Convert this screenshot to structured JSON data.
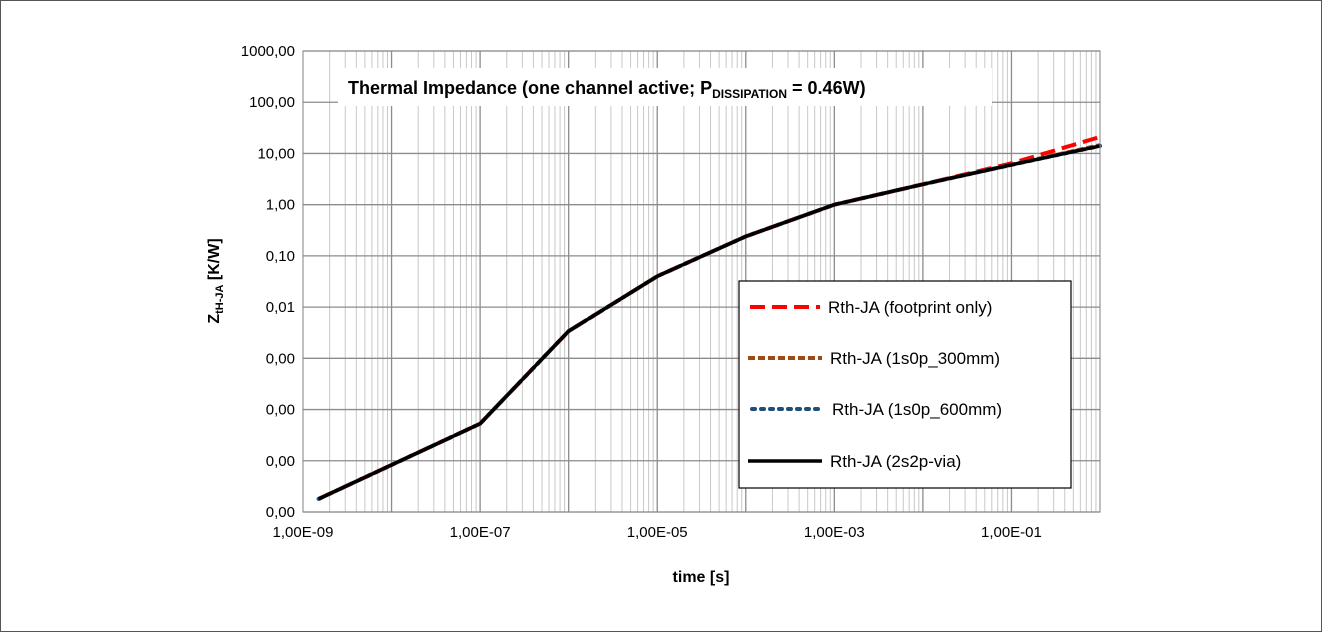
{
  "chart_data": {
    "type": "line",
    "title_main": "Thermal Impedance (one channel active; P",
    "title_sub": "DISSIPATION",
    "title_tail": " = 0.46W)",
    "xlabel": "time  [s]",
    "ylabel_main": "Z",
    "ylabel_sub": "tH-JA",
    "ylabel_tail": " [K/W]",
    "x_scale": "log",
    "y_scale": "log",
    "xlim": [
      1e-09,
      1
    ],
    "ylim": [
      1e-06,
      1000
    ],
    "x_ticks": [
      1e-09,
      1e-07,
      1e-05,
      0.001,
      0.1
    ],
    "x_tick_labels": [
      "1,00E-09",
      "1,00E-07",
      "1,00E-05",
      "1,00E-03",
      "1,00E-01"
    ],
    "y_ticks": [
      1e-06,
      1e-05,
      0.0001,
      0.001,
      0.01,
      0.1,
      1,
      10,
      100,
      1000
    ],
    "y_tick_labels": [
      "0,00",
      "0,00",
      "0,00",
      "0,00",
      "0,01",
      "0,10",
      "1,00",
      "10,00",
      "100,00",
      "1000,00"
    ],
    "grid": true,
    "legend_position": "lower-right",
    "x": [
      1.5e-09,
      1e-08,
      1e-07,
      1e-06,
      1e-05,
      0.0001,
      0.001,
      0.01,
      0.1,
      1
    ],
    "series": [
      {
        "name": "Rth-JA (footprint only)",
        "color": "#ff0000",
        "dash": "dashed",
        "values": [
          1.8e-06,
          8.3e-06,
          5.3e-05,
          0.0034,
          0.04,
          0.24,
          1.0,
          2.5,
          6.4,
          21
        ]
      },
      {
        "name": "Rth-JA (1s0p_300mm)",
        "color": "#9c4a16",
        "dash": "dashed",
        "values": [
          1.8e-06,
          8.3e-06,
          5.3e-05,
          0.0034,
          0.04,
          0.24,
          1.0,
          2.5,
          6.0,
          14.5
        ]
      },
      {
        "name": "Rth-JA (1s0p_600mm)",
        "color": "#1f4e79",
        "dash": "dotted",
        "values": [
          1.8e-06,
          8.3e-06,
          5.3e-05,
          0.0034,
          0.04,
          0.24,
          1.0,
          2.5,
          6.0,
          14.0
        ]
      },
      {
        "name": "Rth-JA (2s2p-via)",
        "color": "#000000",
        "dash": "solid",
        "values": [
          1.8e-06,
          8.3e-06,
          5.3e-05,
          0.0034,
          0.04,
          0.24,
          1.0,
          2.5,
          6.0,
          14.0
        ]
      }
    ]
  }
}
